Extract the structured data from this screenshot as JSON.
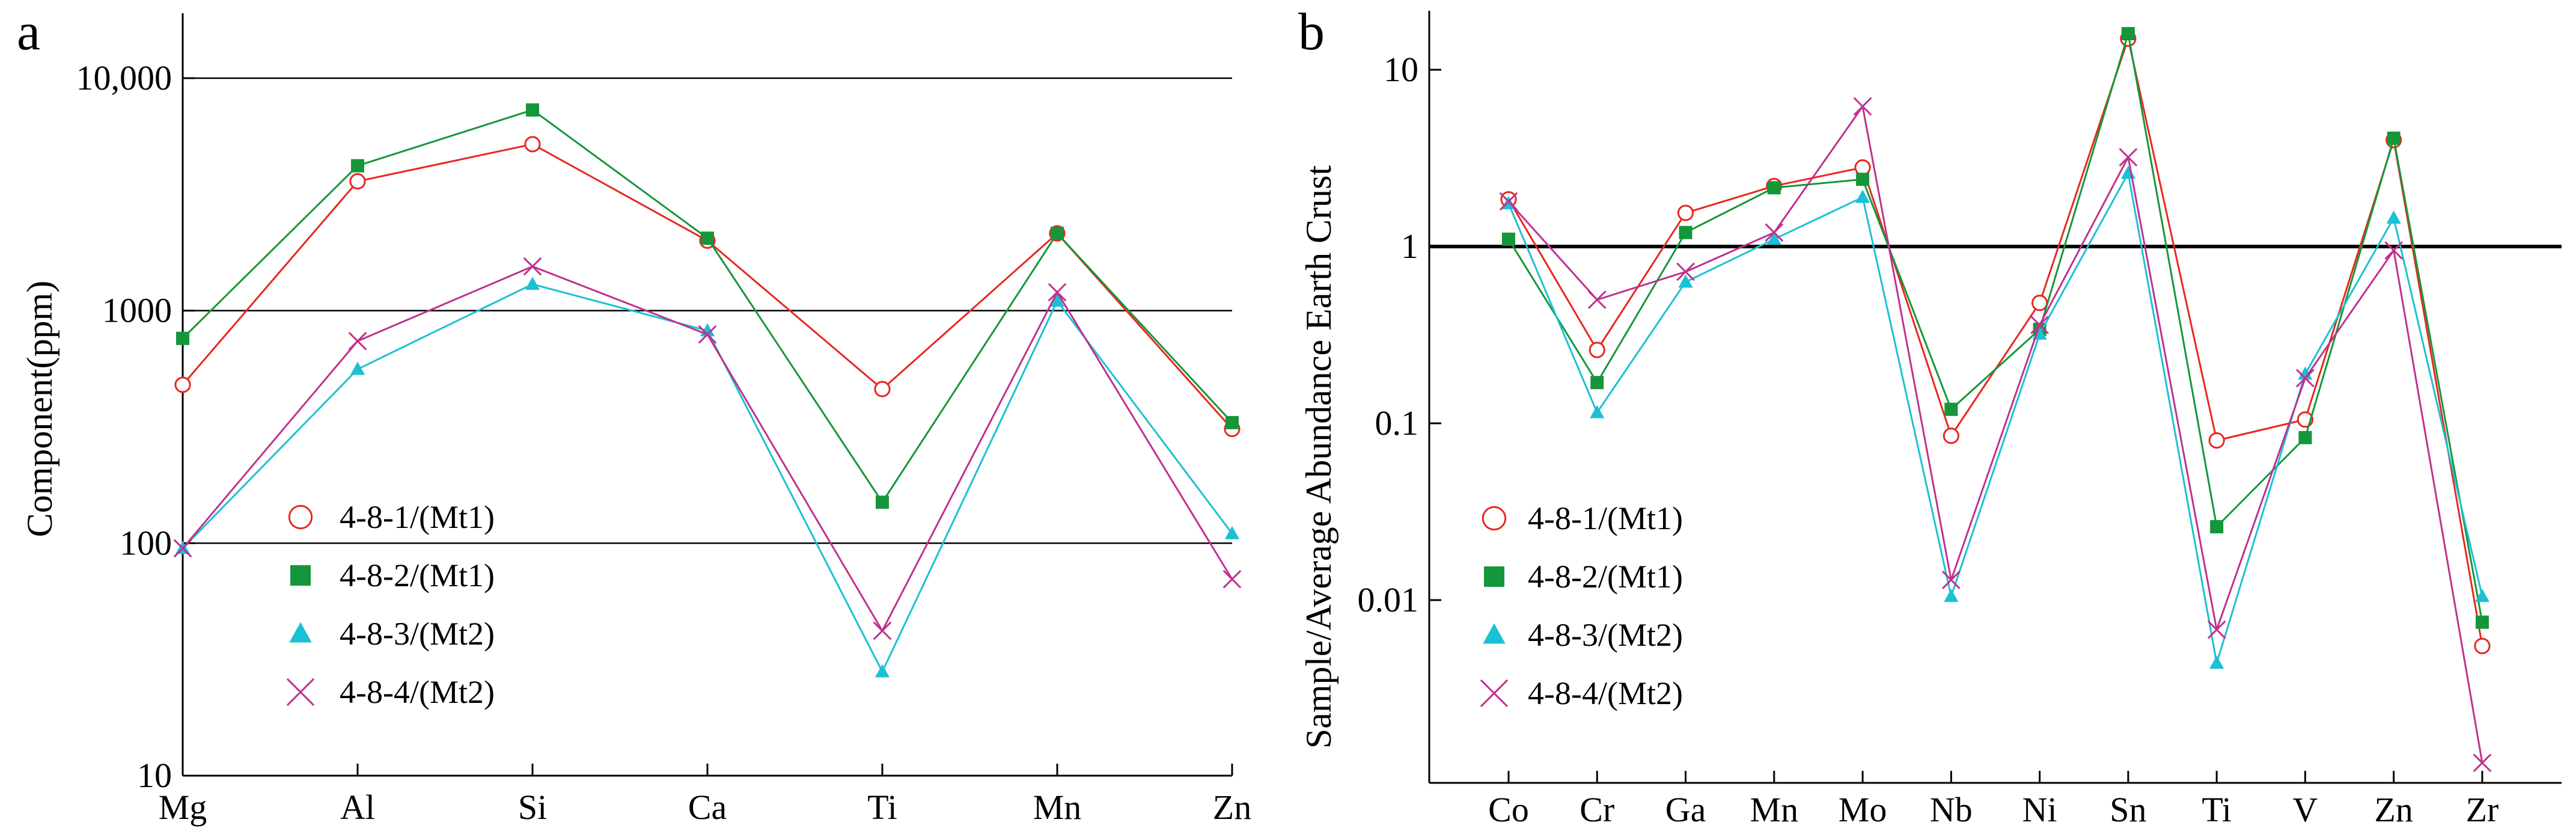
{
  "chart_data": [
    {
      "type": "line",
      "panel_label": "a",
      "title": "",
      "xlabel": "",
      "ylabel": "Component(ppm)",
      "yscale": "log",
      "ylim": [
        10,
        20000
      ],
      "y_ticks": [
        10,
        100,
        1000,
        10000
      ],
      "y_tick_labels": [
        "10",
        "100",
        "1000",
        "10,000"
      ],
      "gridlines": [
        100,
        1000,
        10000
      ],
      "categories": [
        "Mg",
        "Al",
        "Si",
        "Ca",
        "Ti",
        "Mn",
        "Zn"
      ],
      "legend_position": "bottom-left",
      "series": [
        {
          "name": "4-8-1/(Mt1)",
          "color": "#e8271e",
          "marker": "circle",
          "values": [
            480,
            3600,
            5200,
            2000,
            460,
            2150,
            310
          ]
        },
        {
          "name": "4-8-2/(Mt1)",
          "color": "#15963a",
          "marker": "square",
          "values": [
            760,
            4200,
            7300,
            2050,
            150,
            2150,
            330
          ]
        },
        {
          "name": "4-8-3/(Mt2)",
          "color": "#1cc0d4",
          "marker": "triangle",
          "values": [
            95,
            560,
            1300,
            820,
            28,
            1100,
            110
          ]
        },
        {
          "name": "4-8-4/(Mt2)",
          "color": "#c0308f",
          "marker": "cross",
          "values": [
            95,
            740,
            1550,
            790,
            42,
            1200,
            70
          ]
        }
      ]
    },
    {
      "type": "line",
      "panel_label": "b",
      "title": "",
      "xlabel": "",
      "ylabel": "Sample/Average  Abundance  Earth Crust",
      "yscale": "log",
      "ylim": [
        0.001,
        20
      ],
      "y_ticks": [
        0.01,
        0.1,
        1,
        10
      ],
      "y_tick_labels": [
        "0.01",
        "0.1",
        "1",
        "10"
      ],
      "reference_line": 1,
      "categories": [
        "Co",
        "Cr",
        "Ga",
        "Mn",
        "Mo",
        "Nb",
        "Ni",
        "Sn",
        "Ti",
        "V",
        "Zn",
        "Zr"
      ],
      "legend_position": "bottom-left",
      "series": [
        {
          "name": "4-8-1/(Mt1)",
          "color": "#e8271e",
          "marker": "circle",
          "values": [
            1.85,
            0.26,
            1.55,
            2.2,
            2.8,
            0.085,
            0.48,
            15,
            0.08,
            0.105,
            4.0,
            0.0055
          ]
        },
        {
          "name": "4-8-2/(Mt1)",
          "color": "#15963a",
          "marker": "square",
          "values": [
            1.1,
            0.17,
            1.2,
            2.15,
            2.4,
            0.12,
            0.34,
            16,
            0.026,
            0.083,
            4.1,
            0.0075
          ]
        },
        {
          "name": "4-8-3/(Mt2)",
          "color": "#1cc0d4",
          "marker": "triangle",
          "values": [
            1.75,
            0.115,
            0.63,
            1.1,
            1.9,
            0.0105,
            0.32,
            2.6,
            0.0044,
            0.19,
            1.45,
            0.0105
          ]
        },
        {
          "name": "4-8-4/(Mt2)",
          "color": "#c0308f",
          "marker": "cross",
          "values": [
            1.8,
            0.5,
            0.72,
            1.2,
            6.2,
            0.013,
            0.36,
            3.2,
            0.0068,
            0.18,
            0.95,
            0.0012
          ]
        }
      ]
    }
  ]
}
